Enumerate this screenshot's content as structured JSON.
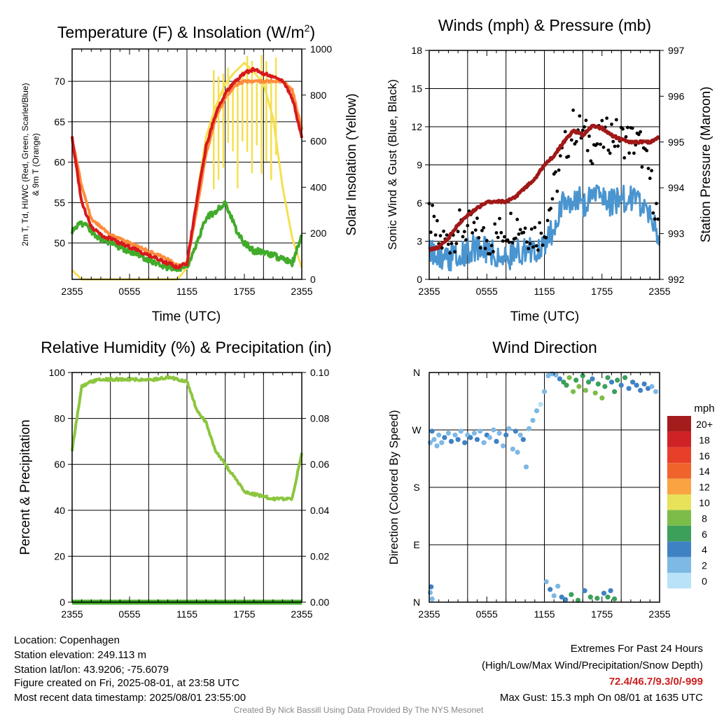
{
  "colors": {
    "red": "#d7191c",
    "orange": "#fd8d3c",
    "green": "#41ab2a",
    "yellow": "#f5e050",
    "lightgreen": "#8cc63f",
    "blue": "#4a95d0",
    "maroon": "#a01818",
    "black": "#000000",
    "footer_red": "#cc1f1f",
    "credit_gray": "#888888"
  },
  "chart_data": [
    {
      "type": "line",
      "title": "Temperature (F) & Insolation (W/m²)",
      "xlabel": "Time (UTC)",
      "ylabel": "2m T, T_d, HI/WC (Red, Green, Scarlet/Blue) & 9m T (Orange)",
      "ylabel_line1": "2m T, Td, HI/WC (Red, Green, Scarlet/Blue)",
      "ylabel_line2": "& 9m T (Orange)",
      "y2label": "Solar Insolation (Yellow)",
      "x_ticks": [
        "2355",
        "0555",
        "1155",
        "1755",
        "2355"
      ],
      "y_ticks": [
        "50",
        "55",
        "60",
        "65",
        "70"
      ],
      "y2_ticks": [
        "0",
        "200",
        "400",
        "600",
        "800",
        "1000"
      ],
      "ylim": [
        45.5,
        74
      ],
      "y2lim": [
        0,
        1000
      ],
      "x_hours": [
        0,
        1,
        2,
        3,
        4,
        5,
        6,
        7,
        8,
        9,
        10,
        11,
        12,
        13,
        14,
        15,
        16,
        17,
        18,
        19,
        20,
        21,
        22,
        23,
        24
      ],
      "series": [
        {
          "color": "#d7191c",
          "axis": "left",
          "values": [
            63,
            55,
            52,
            51,
            50.5,
            50,
            49.5,
            49,
            48.5,
            48,
            47.5,
            47,
            47.5,
            55,
            62,
            66,
            68.5,
            70,
            71,
            71.5,
            71,
            70.5,
            70,
            68,
            63
          ]
        },
        {
          "color": "#fd8d3c",
          "axis": "left",
          "values": [
            63,
            57,
            53,
            52,
            51,
            50.5,
            50,
            49.5,
            49,
            48.5,
            48,
            47.2,
            47.5,
            54,
            61,
            65.5,
            68,
            69.5,
            70,
            70,
            70,
            70,
            70,
            69,
            64
          ]
        },
        {
          "color": "#41ab2a",
          "axis": "left",
          "values": [
            51.5,
            52.5,
            51.5,
            50.5,
            50,
            49.5,
            49,
            48.5,
            48,
            47.5,
            47,
            46.8,
            47,
            50,
            53,
            54,
            55,
            52,
            50,
            49,
            49,
            48.5,
            48,
            47.5,
            51
          ]
        },
        {
          "color": "#f5e050",
          "axis": "right",
          "values": [
            40,
            0,
            0,
            0,
            0,
            0,
            0,
            0,
            0,
            0,
            0,
            0,
            50,
            350,
            620,
            750,
            850,
            900,
            940,
            900,
            850,
            700,
            400,
            180,
            50
          ]
        }
      ]
    },
    {
      "type": "line",
      "title": "Winds (mph) & Pressure (mb)",
      "xlabel": "Time (UTC)",
      "ylabel": "Sonic Wind & Gust (Blue, Black)",
      "y2label": "Station Pressure (Maroon)",
      "x_ticks": [
        "2355",
        "0555",
        "1155",
        "1755",
        "2355"
      ],
      "y_ticks": [
        "0",
        "3",
        "6",
        "9",
        "12",
        "15",
        "18"
      ],
      "y2_ticks": [
        "992",
        "993",
        "994",
        "995",
        "996",
        "997"
      ],
      "ylim": [
        0,
        18
      ],
      "y2lim": [
        992,
        997
      ],
      "x_hours": [
        0,
        1,
        2,
        3,
        4,
        5,
        6,
        7,
        8,
        9,
        10,
        11,
        12,
        13,
        14,
        15,
        16,
        17,
        18,
        19,
        20,
        21,
        22,
        23,
        24
      ],
      "series": [
        {
          "name": "",
          "color": "#4a95d0",
          "axis": "left",
          "values": [
            2,
            1.8,
            1.6,
            1.8,
            2.2,
            2.5,
            2.3,
            2,
            1.8,
            2,
            2.2,
            2.2,
            2.5,
            4,
            6,
            6.5,
            6,
            6.2,
            6.5,
            6,
            6.2,
            6.5,
            6,
            5,
            3
          ]
        },
        {
          "name": "",
          "color": "#000000",
          "axis": "left",
          "type": "scatter",
          "values": [
            5,
            3,
            3,
            4,
            4,
            3.5,
            3,
            3.5,
            4,
            4.5,
            4,
            3.5,
            4,
            7,
            10,
            12,
            11.5,
            10.5,
            11,
            11.5,
            11,
            11,
            10.5,
            8,
            4
          ]
        },
        {
          "name": "",
          "color": "#a01818",
          "axis": "right",
          "values": [
            992.65,
            992.7,
            992.9,
            993.2,
            993.4,
            993.55,
            993.7,
            993.7,
            993.7,
            993.8,
            994.0,
            994.2,
            994.5,
            994.7,
            995.0,
            995.25,
            995.15,
            995.35,
            995.3,
            995.15,
            995.05,
            995.0,
            995.0,
            995.0,
            995.1
          ]
        }
      ]
    },
    {
      "type": "line",
      "title": "Relative Humidity (%) & Precipitation (in)",
      "xlabel": "",
      "ylabel": "Percent & Precipitation",
      "x_ticks": [
        "2355",
        "0555",
        "1155",
        "1755",
        "2355"
      ],
      "y_ticks": [
        "0",
        "20",
        "40",
        "60",
        "80",
        "100"
      ],
      "y2_ticks": [
        "0.00",
        "0.02",
        "0.04",
        "0.06",
        "0.08",
        "0.10"
      ],
      "ylim": [
        0,
        100
      ],
      "y2lim": [
        0,
        0.1
      ],
      "x_hours": [
        0,
        1,
        2,
        3,
        4,
        5,
        6,
        7,
        8,
        9,
        10,
        11,
        12,
        13,
        14,
        15,
        16,
        17,
        18,
        19,
        20,
        21,
        22,
        23,
        24
      ],
      "series": [
        {
          "color": "#8cc63f",
          "axis": "left",
          "values": [
            66,
            94,
            96,
            97,
            97,
            97,
            97,
            97,
            97,
            97,
            98,
            97,
            96,
            84,
            78,
            66,
            60,
            54,
            48,
            47,
            46,
            45,
            45,
            45,
            65
          ]
        },
        {
          "color": "#41ab2a",
          "axis": "right",
          "values": [
            0,
            0,
            0,
            0,
            0,
            0,
            0,
            0,
            0,
            0,
            0,
            0,
            0,
            0,
            0,
            0,
            0,
            0,
            0,
            0,
            0,
            0,
            0,
            0,
            0
          ]
        }
      ]
    },
    {
      "type": "scatter",
      "title": "Wind Direction",
      "xlabel": "",
      "ylabel": "Direction (Colored By Speed)",
      "x_ticks": [
        "2355",
        "0555",
        "1155",
        "1755",
        "2355"
      ],
      "y_ticks": [
        "N",
        "E",
        "S",
        "W",
        "N"
      ],
      "ylim": [
        0,
        360
      ],
      "legend": {
        "title": "mph",
        "labels": [
          "20+",
          "18",
          "16",
          "14",
          "12",
          "10",
          "8",
          "6",
          "4",
          "2",
          "0"
        ],
        "colors": [
          "#a51c1c",
          "#cf2226",
          "#e6402b",
          "#f0642c",
          "#f9a343",
          "#e8e15a",
          "#7cbd4a",
          "#3c9f5a",
          "#3f82c4",
          "#7eb8e4",
          "#b8e2f7"
        ]
      },
      "points": [
        {
          "x": 0.1,
          "dir": 250,
          "spd": 2
        },
        {
          "x": 0.3,
          "dir": 268,
          "spd": 3
        },
        {
          "x": 0.5,
          "dir": 255,
          "spd": 1
        },
        {
          "x": 0.8,
          "dir": 245,
          "spd": 1
        },
        {
          "x": 1.0,
          "dir": 262,
          "spd": 2
        },
        {
          "x": 1.3,
          "dir": 250,
          "spd": 2
        },
        {
          "x": 1.6,
          "dir": 258,
          "spd": 3
        },
        {
          "x": 2.0,
          "dir": 265,
          "spd": 2
        },
        {
          "x": 2.3,
          "dir": 252,
          "spd": 3
        },
        {
          "x": 2.7,
          "dir": 262,
          "spd": 2
        },
        {
          "x": 3.0,
          "dir": 255,
          "spd": 3
        },
        {
          "x": 3.3,
          "dir": 268,
          "spd": 2
        },
        {
          "x": 3.7,
          "dir": 250,
          "spd": 3
        },
        {
          "x": 4.0,
          "dir": 262,
          "spd": 2
        },
        {
          "x": 4.3,
          "dir": 258,
          "spd": 3
        },
        {
          "x": 4.7,
          "dir": 265,
          "spd": 2
        },
        {
          "x": 5.0,
          "dir": 255,
          "spd": 3
        },
        {
          "x": 5.3,
          "dir": 268,
          "spd": 2
        },
        {
          "x": 5.7,
          "dir": 250,
          "spd": 2
        },
        {
          "x": 6.0,
          "dir": 262,
          "spd": 3
        },
        {
          "x": 6.3,
          "dir": 258,
          "spd": 2
        },
        {
          "x": 6.7,
          "dir": 270,
          "spd": 1
        },
        {
          "x": 7.0,
          "dir": 252,
          "spd": 3
        },
        {
          "x": 7.3,
          "dir": 265,
          "spd": 2
        },
        {
          "x": 7.7,
          "dir": 245,
          "spd": 1
        },
        {
          "x": 8.0,
          "dir": 262,
          "spd": 3
        },
        {
          "x": 8.3,
          "dir": 272,
          "spd": 2
        },
        {
          "x": 8.7,
          "dir": 240,
          "spd": 2
        },
        {
          "x": 9.0,
          "dir": 268,
          "spd": 3
        },
        {
          "x": 9.2,
          "dir": 235,
          "spd": 2
        },
        {
          "x": 9.5,
          "dir": 262,
          "spd": 2
        },
        {
          "x": 9.8,
          "dir": 255,
          "spd": 3
        },
        {
          "x": 10.1,
          "dir": 212,
          "spd": 1
        },
        {
          "x": 10.4,
          "dir": 272,
          "spd": 2
        },
        {
          "x": 10.8,
          "dir": 285,
          "spd": 1
        },
        {
          "x": 11.2,
          "dir": 300,
          "spd": 1
        },
        {
          "x": 11.6,
          "dir": 310,
          "spd": 0
        },
        {
          "x": 12.0,
          "dir": 330,
          "spd": 1
        },
        {
          "x": 12.4,
          "dir": 355,
          "spd": 2
        },
        {
          "x": 12.8,
          "dir": 358,
          "spd": 1
        },
        {
          "x": 13.2,
          "dir": 356,
          "spd": 2
        },
        {
          "x": 13.6,
          "dir": 350,
          "spd": 4
        },
        {
          "x": 14.0,
          "dir": 345,
          "spd": 6
        },
        {
          "x": 14.3,
          "dir": 340,
          "spd": 5
        },
        {
          "x": 14.6,
          "dir": 352,
          "spd": 7
        },
        {
          "x": 15.0,
          "dir": 330,
          "spd": 8
        },
        {
          "x": 15.3,
          "dir": 348,
          "spd": 6
        },
        {
          "x": 15.6,
          "dir": 338,
          "spd": 7
        },
        {
          "x": 16.0,
          "dir": 355,
          "spd": 5
        },
        {
          "x": 16.3,
          "dir": 332,
          "spd": 8
        },
        {
          "x": 16.6,
          "dir": 345,
          "spd": 6
        },
        {
          "x": 17.0,
          "dir": 350,
          "spd": 4
        },
        {
          "x": 17.3,
          "dir": 328,
          "spd": 7
        },
        {
          "x": 17.6,
          "dir": 342,
          "spd": 6
        },
        {
          "x": 18.0,
          "dir": 320,
          "spd": 8
        },
        {
          "x": 18.3,
          "dir": 338,
          "spd": 5
        },
        {
          "x": 18.6,
          "dir": 352,
          "spd": 6
        },
        {
          "x": 19.0,
          "dir": 345,
          "spd": 4
        },
        {
          "x": 19.3,
          "dir": 330,
          "spd": 5
        },
        {
          "x": 19.6,
          "dir": 348,
          "spd": 6
        },
        {
          "x": 20.0,
          "dir": 340,
          "spd": 4
        },
        {
          "x": 20.4,
          "dir": 352,
          "spd": 5
        },
        {
          "x": 20.8,
          "dir": 335,
          "spd": 4
        },
        {
          "x": 21.2,
          "dir": 345,
          "spd": 3
        },
        {
          "x": 21.6,
          "dir": 340,
          "spd": 4
        },
        {
          "x": 22.0,
          "dir": 332,
          "spd": 3
        },
        {
          "x": 22.4,
          "dir": 342,
          "spd": 4
        },
        {
          "x": 22.8,
          "dir": 335,
          "spd": 3
        },
        {
          "x": 23.2,
          "dir": 338,
          "spd": 2
        },
        {
          "x": 23.6,
          "dir": 330,
          "spd": 2
        },
        {
          "x": 0.1,
          "dir": 15,
          "spd": 2
        },
        {
          "x": 0.3,
          "dir": 5,
          "spd": 1
        },
        {
          "x": 0.2,
          "dir": 24,
          "spd": 3
        },
        {
          "x": 12.2,
          "dir": 32,
          "spd": 2
        },
        {
          "x": 12.6,
          "dir": 20,
          "spd": 3
        },
        {
          "x": 13.0,
          "dir": 10,
          "spd": 1
        },
        {
          "x": 13.4,
          "dir": 25,
          "spd": 2
        },
        {
          "x": 13.8,
          "dir": 8,
          "spd": 3
        },
        {
          "x": 14.2,
          "dir": 4,
          "spd": 4
        },
        {
          "x": 14.8,
          "dir": 12,
          "spd": 6
        },
        {
          "x": 15.5,
          "dir": 3,
          "spd": 5
        },
        {
          "x": 16.2,
          "dir": 18,
          "spd": 4
        },
        {
          "x": 16.8,
          "dir": 8,
          "spd": 6
        },
        {
          "x": 17.5,
          "dir": 6,
          "spd": 5
        },
        {
          "x": 18.2,
          "dir": 14,
          "spd": 4
        },
        {
          "x": 18.6,
          "dir": 8,
          "spd": 6
        },
        {
          "x": 18.9,
          "dir": 18,
          "spd": 3
        },
        {
          "x": 19.3,
          "dir": 5,
          "spd": 5
        }
      ]
    }
  ],
  "panel1": {
    "title_main": "Temperature (F) & Insolation (W/m",
    "title_sup": "2",
    "title_close": ")",
    "xlabel": "Time (UTC)",
    "ylabel_line1": "2m T, Td, HI/WC (Red, Green, Scarlet/Blue)",
    "ylabel_line2": "& 9m T (Orange)",
    "y2label": "Solar Insolation (Yellow)"
  },
  "panel2": {
    "title": "Winds (mph) & Pressure (mb)",
    "xlabel": "Time (UTC)",
    "ylabel": "Sonic Wind & Gust (Blue, Black)",
    "y2label": "Station Pressure (Maroon)"
  },
  "panel3": {
    "title": "Relative Humidity (%) & Precipitation (in)",
    "ylabel": "Percent & Precipitation"
  },
  "panel4": {
    "title": "Wind Direction",
    "ylabel": "Direction (Colored By Speed)",
    "legend_title": "mph"
  },
  "footer": {
    "location": "Location: Copenhagen",
    "elevation": "Station elevation: 249.113 m",
    "latlon": "Station lat/lon: 43.9206; -75.6079",
    "created": "Figure created on Fri, 2025-08-01, at 23:58 UTC",
    "recent": "Most recent data timestamp: 2025/08/01 23:55:00",
    "extremes_title": "Extremes For Past 24 Hours",
    "extremes_sub": "(High/Low/Max Wind/Precipitation/Snow Depth)",
    "extremes_values": "72.4/46.7/9.3/0/-999",
    "max_gust": "Max Gust: 15.3 mph On 08/01 at 1635 UTC",
    "credit": "Created By Nick Bassill Using Data Provided By The NYS Mesonet"
  }
}
